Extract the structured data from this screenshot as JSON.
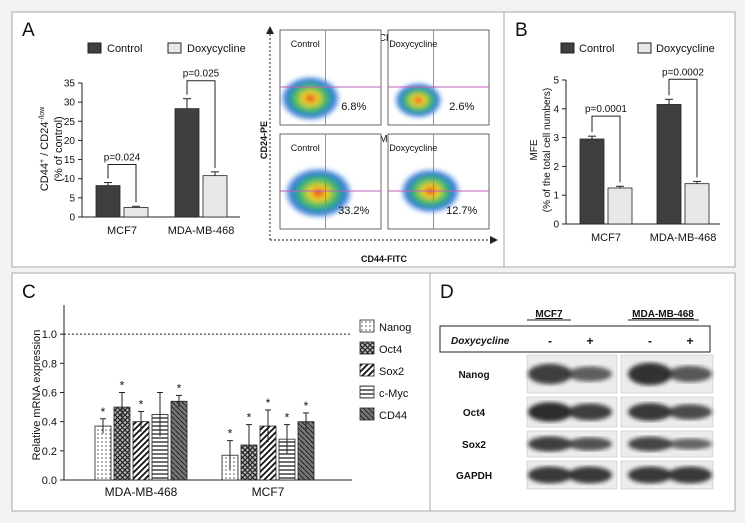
{
  "panel_letters": {
    "a": "A",
    "b": "B",
    "c": "C",
    "d": "D"
  },
  "chart_data": [
    {
      "panel": "A",
      "type": "bar",
      "ylabel_lines": [
        "CD44⁺ / CD24⁻/low",
        "(% of control)"
      ],
      "ylim": [
        0,
        35
      ],
      "yticks": [
        "0",
        "5",
        "10",
        "15",
        "20",
        "25",
        "30",
        "35"
      ],
      "categories": [
        "MCF7",
        "MDA-MB-468"
      ],
      "series": [
        {
          "name": "Control",
          "values": [
            8.2,
            28.3
          ],
          "errors": [
            0.8,
            2.6
          ]
        },
        {
          "name": "Doxycycline",
          "values": [
            2.5,
            10.8
          ],
          "errors": [
            0.3,
            1.0
          ]
        }
      ],
      "annotations": [
        "p=0.024",
        "p=0.025"
      ]
    },
    {
      "panel": "B",
      "type": "bar",
      "ylabel_lines": [
        "MFE",
        "(% of the total cell numbers)"
      ],
      "ylim": [
        0,
        5
      ],
      "yticks": [
        "0",
        "1",
        "2",
        "3",
        "4",
        "5"
      ],
      "categories": [
        "MCF7",
        "MDA-MB-468"
      ],
      "series": [
        {
          "name": "Control",
          "values": [
            2.95,
            4.15
          ],
          "errors": [
            0.1,
            0.18
          ]
        },
        {
          "name": "Doxycycline",
          "values": [
            1.25,
            1.4
          ],
          "errors": [
            0.06,
            0.08
          ]
        }
      ],
      "annotations": [
        "p=0.0001",
        "p=0.0002"
      ]
    },
    {
      "panel": "C",
      "type": "bar",
      "ylabel": "Relative mRNA expression",
      "ylim": [
        0,
        1.2
      ],
      "yticks": [
        "0.0",
        "0.2",
        "0.4",
        "0.6",
        "0.8",
        "1.0"
      ],
      "reference_line": 1.0,
      "categories": [
        "MDA-MB-468",
        "MCF7"
      ],
      "series": [
        {
          "name": "Nanog",
          "values": [
            0.37,
            0.17
          ],
          "errors": [
            0.05,
            0.1
          ]
        },
        {
          "name": "Oct4",
          "values": [
            0.5,
            0.24
          ],
          "errors": [
            0.1,
            0.14
          ]
        },
        {
          "name": "Sox2",
          "values": [
            0.4,
            0.37
          ],
          "errors": [
            0.07,
            0.11
          ]
        },
        {
          "name": "c-Myc",
          "values": [
            0.45,
            0.28
          ],
          "errors": [
            0.15,
            0.1
          ]
        },
        {
          "name": "CD44",
          "values": [
            0.54,
            0.4
          ],
          "errors": [
            0.04,
            0.06
          ]
        }
      ],
      "star_label": "*",
      "stars": [
        [
          true,
          true,
          true,
          false,
          true
        ],
        [
          true,
          true,
          true,
          true,
          true
        ]
      ]
    }
  ],
  "flow": {
    "mcf7_label": "MCF7",
    "mda_label": "MDA-MB-468",
    "control_label": "Control",
    "dox_label": "Doxycycline",
    "percents": [
      "6.8%",
      "2.6%",
      "33.2%",
      "12.7%"
    ],
    "y_axis": "CD24-PE",
    "x_axis": "CD44-FITC"
  },
  "blot": {
    "mcf7_label": "MCF7",
    "mda_label": "MDA-MB-468",
    "treatment_label": "Doxycycline",
    "signs": [
      "-",
      "+",
      "-",
      "+"
    ],
    "rows": [
      "Nanog",
      "Oct4",
      "Sox2",
      "GAPDH"
    ],
    "band_strength": [
      [
        0.8,
        0.55,
        0.9,
        0.6
      ],
      [
        0.95,
        0.8,
        0.85,
        0.7
      ],
      [
        0.8,
        0.65,
        0.75,
        0.5
      ],
      [
        0.85,
        0.85,
        0.85,
        0.85
      ]
    ]
  }
}
